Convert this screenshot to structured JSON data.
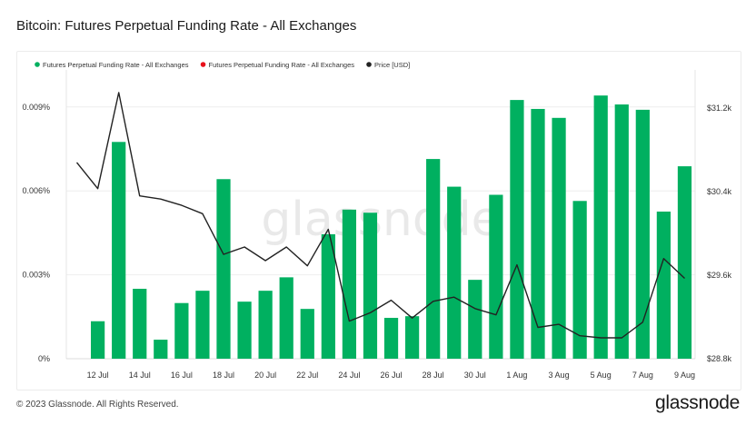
{
  "title": "Bitcoin: Futures Perpetual Funding Rate - All Exchanges",
  "footer": {
    "copyright": "© 2023 Glassnode. All Rights Reserved.",
    "brand": "glassnode"
  },
  "watermark": "glassnode",
  "colors": {
    "bar_positive": "#00b060",
    "bar_negative": "#e8101a",
    "price_line": "#222222",
    "grid": "#eeeeee"
  },
  "chart_data": {
    "type": "bar",
    "legend": [
      {
        "label": "Futures Perpetual Funding Rate - All Exchanges",
        "color": "#00b060"
      },
      {
        "label": "Futures Perpetual Funding Rate - All Exchanges",
        "color": "#e8101a"
      },
      {
        "label": "Price [USD]",
        "color": "#222222"
      }
    ],
    "legend_placement": "top-left",
    "grid": true,
    "x_labels": [
      "12 Jul",
      "14 Jul",
      "16 Jul",
      "18 Jul",
      "20 Jul",
      "22 Jul",
      "24 Jul",
      "26 Jul",
      "28 Jul",
      "30 Jul",
      "1 Aug",
      "3 Aug",
      "5 Aug",
      "7 Aug",
      "9 Aug"
    ],
    "x": [
      "11 Jul",
      "12 Jul",
      "13 Jul",
      "14 Jul",
      "15 Jul",
      "16 Jul",
      "17 Jul",
      "18 Jul",
      "19 Jul",
      "20 Jul",
      "21 Jul",
      "22 Jul",
      "23 Jul",
      "24 Jul",
      "25 Jul",
      "26 Jul",
      "27 Jul",
      "28 Jul",
      "29 Jul",
      "30 Jul",
      "31 Jul",
      "1 Aug",
      "2 Aug",
      "3 Aug",
      "4 Aug",
      "5 Aug",
      "6 Aug",
      "7 Aug",
      "8 Aug",
      "9 Aug"
    ],
    "y_left": {
      "ticks": [
        "0%",
        "0.003%",
        "0.006%",
        "0.009%"
      ],
      "range": [
        0,
        0.01
      ]
    },
    "y_right": {
      "ticks": [
        "$28.8k",
        "$29.6k",
        "$30.4k",
        "$31.2k"
      ],
      "range": [
        28800,
        31480
      ]
    },
    "series": [
      {
        "name": "Futures Perpetual Funding Rate - All Exchanges",
        "kind": "bar",
        "values": [
          null,
          0.00134,
          0.00775,
          0.0025,
          0.00068,
          0.00199,
          0.00243,
          0.00642,
          0.00204,
          0.00243,
          0.00291,
          0.00178,
          0.00445,
          0.00533,
          0.00522,
          0.00146,
          0.00152,
          0.00714,
          0.00615,
          0.00282,
          0.00586,
          0.00925,
          0.00893,
          0.00861,
          0.00564,
          0.00941,
          0.00909,
          0.0089,
          0.00526,
          0.00688
        ]
      },
      {
        "name": "Price [USD]",
        "kind": "line",
        "axis": "right",
        "values": [
          30680,
          30430,
          31350,
          30360,
          30330,
          30270,
          30190,
          29800,
          29870,
          29740,
          29870,
          29690,
          30040,
          29160,
          29240,
          29360,
          29190,
          29350,
          29390,
          29280,
          29220,
          29700,
          29100,
          29130,
          29020,
          29000,
          29000,
          29150,
          29760,
          29570
        ]
      }
    ]
  }
}
